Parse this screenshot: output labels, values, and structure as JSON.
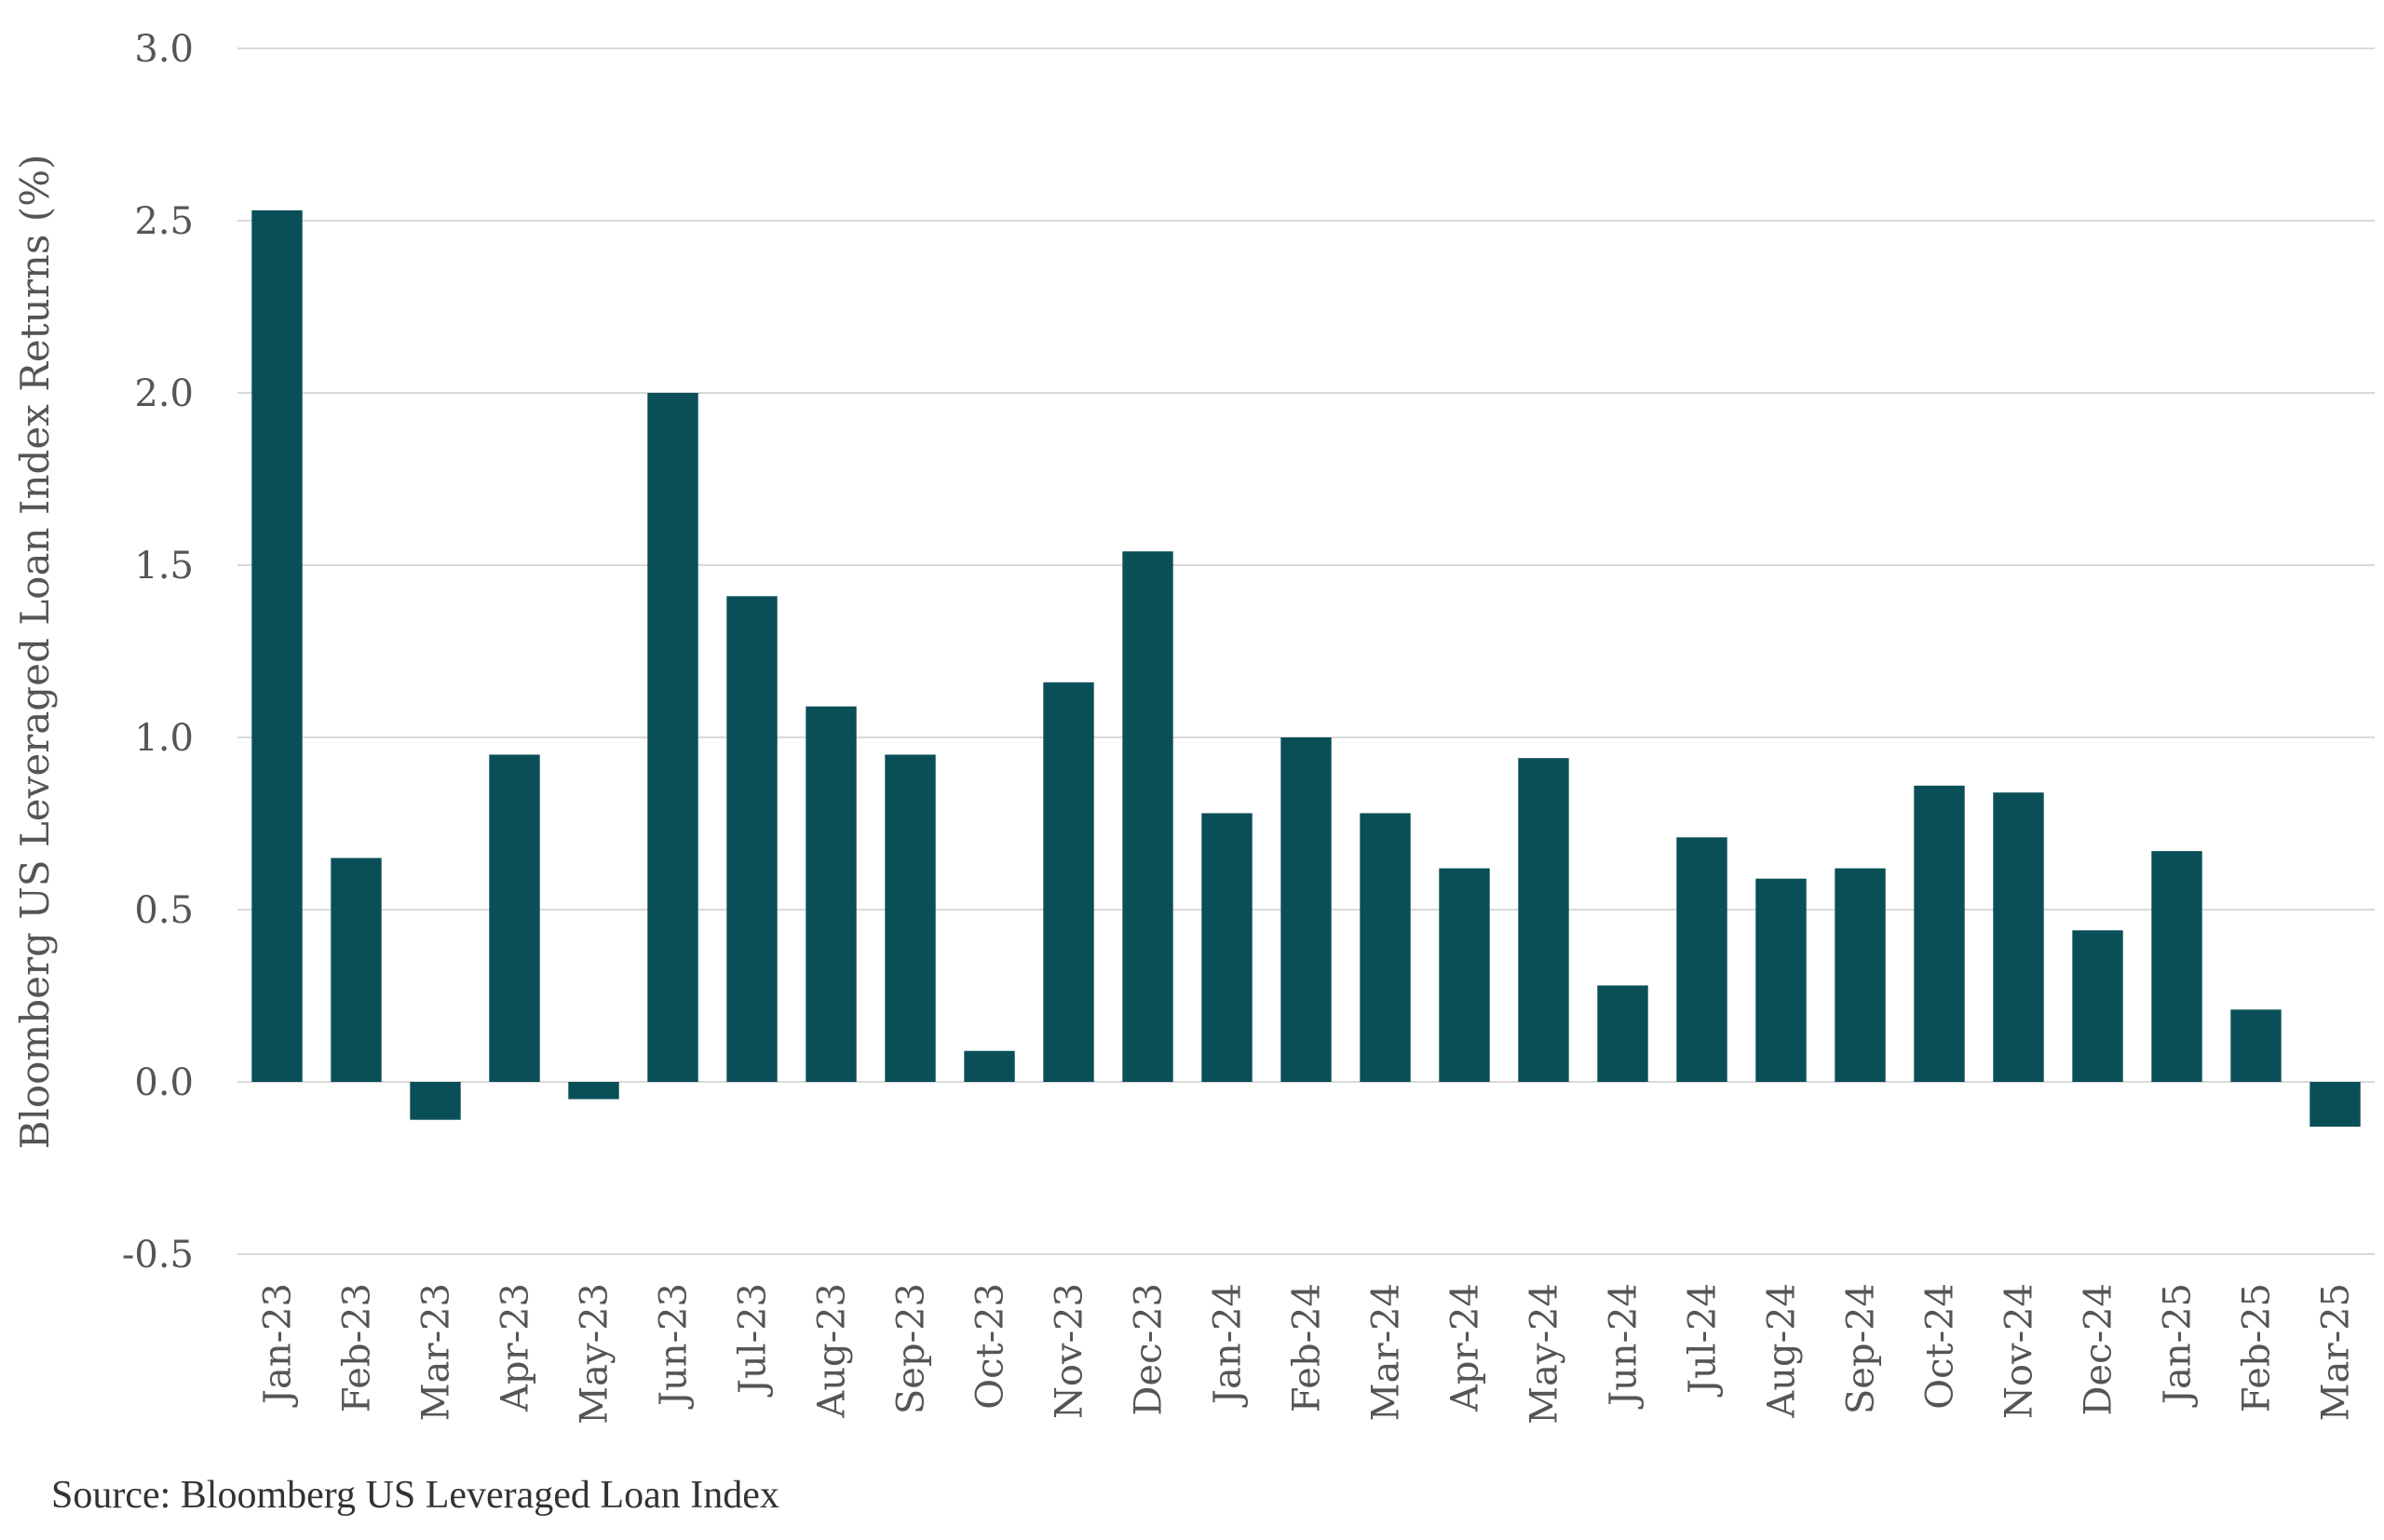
{
  "chart_data": {
    "type": "bar",
    "title": "",
    "xlabel": "",
    "ylabel": "Bloomberg US Leveraged Loan Index Returns (%)",
    "ylim": [
      -0.5,
      3.0
    ],
    "yticks": [
      "-0.5",
      "0.0",
      "0.5",
      "1.0",
      "1.5",
      "2.0",
      "2.5",
      "3.0"
    ],
    "grid": true,
    "legend": "none",
    "bar_color": "#0a4f57",
    "categories": [
      "Jan-23",
      "Feb-23",
      "Mar-23",
      "Apr-23",
      "May-23",
      "Jun-23",
      "Jul-23",
      "Aug-23",
      "Sep-23",
      "Oct-23",
      "Nov-23",
      "Dec-23",
      "Jan-24",
      "Feb-24",
      "Mar-24",
      "Apr-24",
      "May-24",
      "Jun-24",
      "Jul-24",
      "Aug-24",
      "Sep-24",
      "Oct-24",
      "Nov-24",
      "Dec-24",
      "Jan-25",
      "Feb-25",
      "Mar-25"
    ],
    "values": [
      2.53,
      0.65,
      -0.11,
      0.95,
      -0.05,
      2.0,
      1.41,
      1.09,
      0.95,
      0.09,
      1.16,
      1.54,
      0.78,
      1.0,
      0.78,
      0.62,
      0.94,
      0.28,
      0.71,
      0.59,
      0.62,
      0.86,
      0.84,
      0.44,
      0.67,
      0.21,
      -0.13
    ]
  },
  "footer": {
    "source": "Source: Bloomberg US Leveraged Loan Index"
  }
}
